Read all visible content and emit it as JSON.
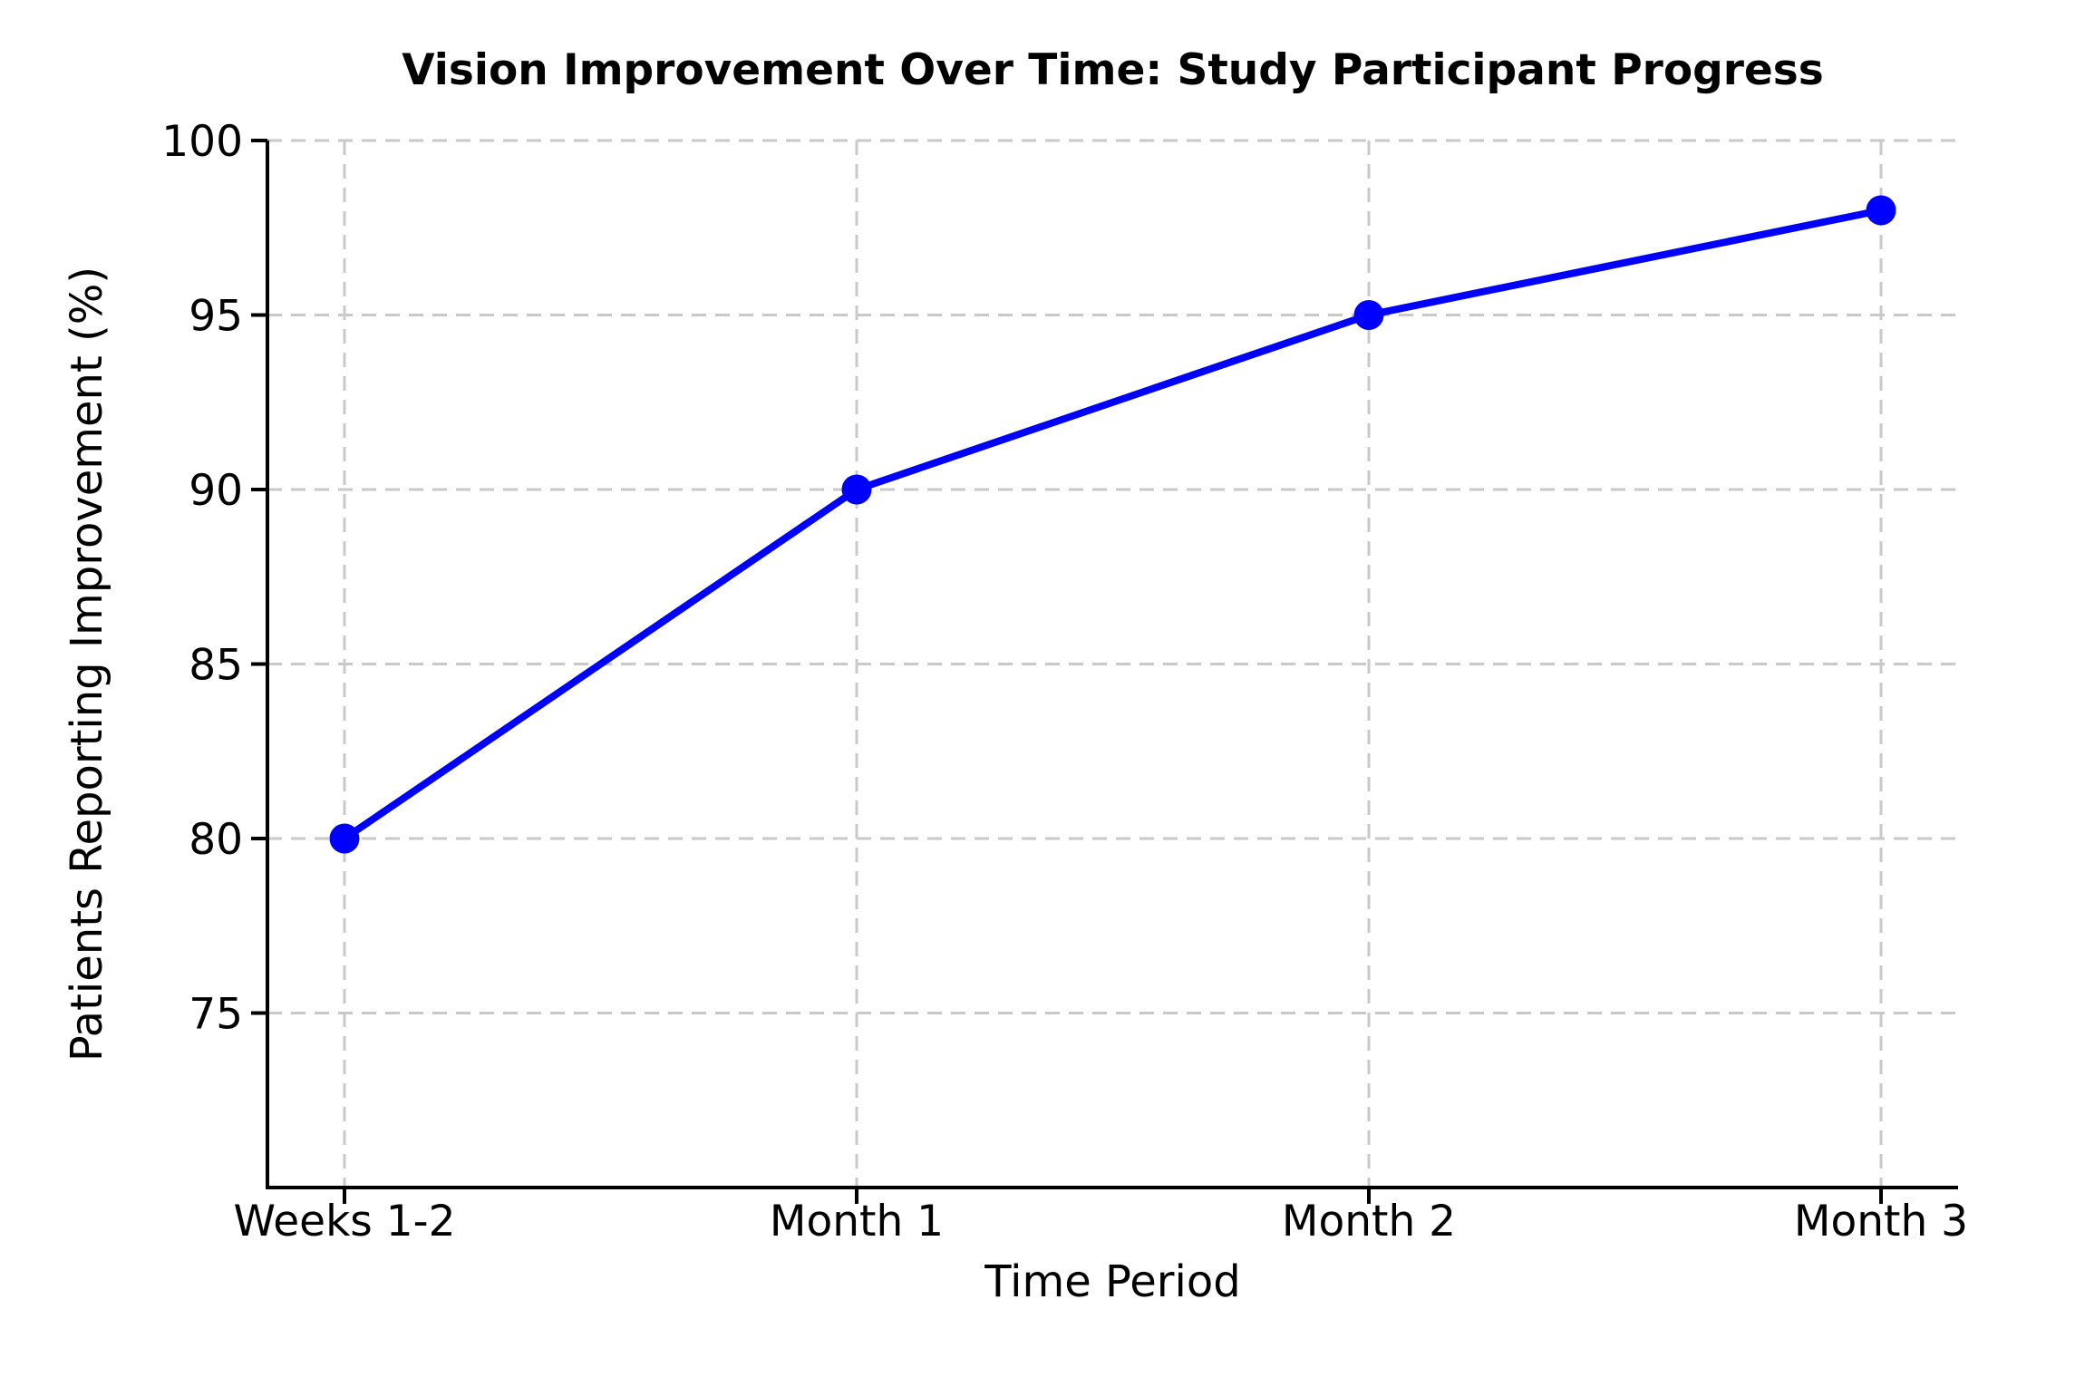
{
  "chart_data": {
    "type": "line",
    "title": "Vision Improvement Over Time: Study Participant Progress",
    "xlabel": "Time Period",
    "ylabel": "Patients Reporting Improvement (%)",
    "categories": [
      "Weeks 1-2",
      "Month 1",
      "Month 2",
      "Month 3"
    ],
    "series": [
      {
        "name": "Patients Reporting Improvement (%)",
        "values": [
          80,
          90,
          95,
          98
        ]
      }
    ],
    "yticks": [
      75,
      80,
      85,
      90,
      95,
      100
    ],
    "ylim": [
      70,
      100
    ],
    "grid": true,
    "grid_style": "dashed",
    "legend_position": "none",
    "marker": "circle",
    "colors": {
      "line": "#0000ff",
      "marker": "#0000ff",
      "grid": "#c9c9c9",
      "axis": "#000000",
      "text": "#000000",
      "background": "#ffffff"
    }
  }
}
